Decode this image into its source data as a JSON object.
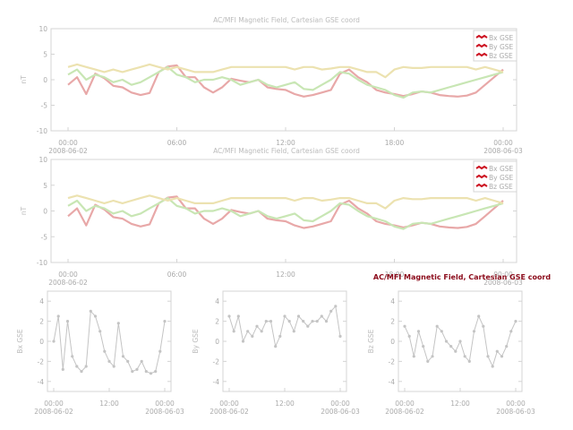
{
  "colors": {
    "Bx": "#e8a8a8",
    "By": "#c8e6b4",
    "Bz": "#ece2b0",
    "frame": "#d4d4d4",
    "grey_series": "#c4c4c4",
    "legend_swatch": "#cc1020",
    "highlight_title": "#8b0a1a"
  },
  "chart_data": [
    {
      "type": "line",
      "title": "AC/MFI  Magnetic Field, Cartesian GSE coord",
      "ylabel": "nT",
      "ylim": [
        -10,
        10
      ],
      "yticks": [
        "10",
        "5",
        "0",
        "-5",
        "-10"
      ],
      "xticks": [
        "00:00",
        "06:00",
        "12:00",
        "18:00",
        "00:00"
      ],
      "xsub": [
        "2008-06-02",
        "",
        "",
        "",
        "2008-06-03"
      ],
      "legend": [
        "Bx GSE",
        "By GSE",
        "Bz GSE"
      ],
      "legend_position": "top-right",
      "x_hours": [
        0,
        0.5,
        1,
        1.5,
        2,
        2.5,
        3,
        3.5,
        4,
        4.5,
        5,
        5.5,
        6,
        6.5,
        7,
        7.5,
        8,
        8.5,
        9,
        9.5,
        10,
        10.5,
        11,
        11.5,
        12,
        12.5,
        13,
        13.5,
        14,
        14.5,
        15,
        15.5,
        16,
        16.5,
        17,
        17.5,
        18,
        18.5,
        19,
        19.5,
        20,
        20.5,
        21,
        21.5,
        22,
        22.5,
        23,
        23.5,
        24
      ],
      "series": [
        {
          "name": "Bx GSE",
          "values": [
            -1,
            0.5,
            -2.8,
            1.2,
            0.3,
            -1.2,
            -1.5,
            -2.5,
            -3,
            -2.6,
            1.5,
            2.6,
            2.8,
            0.5,
            0.5,
            -1.5,
            -2.5,
            -1.5,
            0.2,
            -0.2,
            -0.5,
            0,
            -1.5,
            -1.8,
            -2,
            -2.8,
            -3.3,
            -3,
            -2.5,
            -2,
            1.2,
            2,
            0.5,
            -0.5,
            -2,
            -2.5,
            -2.8,
            -3.2,
            -2.8,
            -2.3,
            -2.5,
            -3,
            -3.2,
            -3.3,
            -3.1,
            -2.5,
            -1,
            0.5,
            2
          ]
        },
        {
          "name": "By GSE",
          "values": [
            1,
            2,
            0,
            1,
            0.5,
            -0.5,
            0,
            -1,
            -0.5,
            0.5,
            1.5,
            2.5,
            1,
            0.5,
            -0.5,
            0,
            0,
            0.5,
            0,
            -1,
            -0.5,
            0,
            -1,
            -1.5,
            -1,
            -0.5,
            -1.8,
            -2,
            -1,
            0,
            1.5,
            1.2,
            0,
            -1,
            -1.5,
            -2,
            -3,
            -3.5,
            -2.5,
            -2.3,
            -2.5,
            -2,
            -1.5,
            -1,
            -0.5,
            0,
            0.5,
            1,
            1.5
          ]
        },
        {
          "name": "Bz GSE",
          "values": [
            2.5,
            3,
            2.5,
            2,
            1.5,
            2,
            1.5,
            2,
            2.5,
            3,
            2.5,
            2,
            2.5,
            2,
            1.5,
            1.5,
            1.5,
            2,
            2.5,
            2.5,
            2.5,
            2.5,
            2.5,
            2.5,
            2.5,
            2,
            2.5,
            2.5,
            2,
            2.2,
            2.5,
            2.5,
            2,
            1.5,
            1.5,
            0.5,
            2,
            2.5,
            2.3,
            2.3,
            2.5,
            2.5,
            2.5,
            2.5,
            2.5,
            2,
            2.5,
            2,
            1.5
          ]
        }
      ]
    },
    {
      "type": "line",
      "title": "AC/MFI  Magnetic Field, Cartesian GSE coord",
      "ylabel": "nT",
      "ylim": [
        -10,
        10
      ],
      "yticks": [
        "10",
        "5",
        "0",
        "-5",
        "-10"
      ],
      "xticks": [
        "00:00",
        "06:00",
        "12:00",
        "18:00",
        "00:00"
      ],
      "xsub": [
        "2008-06-02",
        "",
        "",
        "",
        "2008-06-03"
      ],
      "legend": [
        "Bx GSE",
        "By GSE",
        "Bz GSE"
      ],
      "legend_position": "top-right",
      "x_hours": [
        0,
        0.5,
        1,
        1.5,
        2,
        2.5,
        3,
        3.5,
        4,
        4.5,
        5,
        5.5,
        6,
        6.5,
        7,
        7.5,
        8,
        8.5,
        9,
        9.5,
        10,
        10.5,
        11,
        11.5,
        12,
        12.5,
        13,
        13.5,
        14,
        14.5,
        15,
        15.5,
        16,
        16.5,
        17,
        17.5,
        18,
        18.5,
        19,
        19.5,
        20,
        20.5,
        21,
        21.5,
        22,
        22.5,
        23,
        23.5,
        24
      ],
      "series": [
        {
          "name": "Bx GSE",
          "values": [
            -1,
            0.5,
            -2.8,
            1.2,
            0.3,
            -1.2,
            -1.5,
            -2.5,
            -3,
            -2.6,
            1.5,
            2.6,
            2.8,
            0.5,
            0.5,
            -1.5,
            -2.5,
            -1.5,
            0.2,
            -0.2,
            -0.5,
            0,
            -1.5,
            -1.8,
            -2,
            -2.8,
            -3.3,
            -3,
            -2.5,
            -2,
            1.2,
            2,
            0.5,
            -0.5,
            -2,
            -2.5,
            -2.8,
            -3.2,
            -2.8,
            -2.3,
            -2.5,
            -3,
            -3.2,
            -3.3,
            -3.1,
            -2.5,
            -1,
            0.5,
            2
          ]
        },
        {
          "name": "By GSE",
          "values": [
            1,
            2,
            0,
            1,
            0.5,
            -0.5,
            0,
            -1,
            -0.5,
            0.5,
            1.5,
            2.5,
            1,
            0.5,
            -0.5,
            0,
            0,
            0.5,
            0,
            -1,
            -0.5,
            0,
            -1,
            -1.5,
            -1,
            -0.5,
            -1.8,
            -2,
            -1,
            0,
            1.5,
            1.2,
            0,
            -1,
            -1.5,
            -2,
            -3,
            -3.5,
            -2.5,
            -2.3,
            -2.5,
            -2,
            -1.5,
            -1,
            -0.5,
            0,
            0.5,
            1,
            1.5
          ]
        },
        {
          "name": "Bz GSE",
          "values": [
            2.5,
            3,
            2.5,
            2,
            1.5,
            2,
            1.5,
            2,
            2.5,
            3,
            2.5,
            2,
            2.5,
            2,
            1.5,
            1.5,
            1.5,
            2,
            2.5,
            2.5,
            2.5,
            2.5,
            2.5,
            2.5,
            2.5,
            2,
            2.5,
            2.5,
            2,
            2.2,
            2.5,
            2.5,
            2,
            1.5,
            1.5,
            0.5,
            2,
            2.5,
            2.3,
            2.3,
            2.5,
            2.5,
            2.5,
            2.5,
            2.5,
            2,
            2.5,
            2,
            1.5
          ]
        }
      ]
    },
    {
      "type": "scatter",
      "title": "",
      "ylabel": "Bx GSE",
      "ylim": [
        -5,
        5
      ],
      "yticks": [
        "4",
        "2",
        "0",
        "-2",
        "-4"
      ],
      "xticks": [
        "00:00",
        "12:00",
        "00:00"
      ],
      "xsub": [
        "2008-06-02",
        "",
        "2008-06-03"
      ],
      "x_hours": [
        0,
        1,
        2,
        3,
        4,
        5,
        6,
        7,
        8,
        9,
        10,
        11,
        12,
        13,
        14,
        15,
        16,
        17,
        18,
        19,
        20,
        21,
        22,
        23,
        24
      ],
      "values": [
        0,
        2.5,
        -2.8,
        2,
        -1.5,
        -2.5,
        -3,
        -2.5,
        3,
        2.5,
        1,
        -1,
        -2,
        -2.5,
        1.8,
        -1.5,
        -2,
        -3,
        -2.8,
        -2,
        -3,
        -3.2,
        -3,
        -1,
        2
      ]
    },
    {
      "type": "scatter",
      "title": "",
      "ylabel": "By GSE",
      "ylim": [
        -5,
        5
      ],
      "yticks": [
        "4",
        "2",
        "0",
        "-2",
        "-4"
      ],
      "xticks": [
        "00:00",
        "12:00",
        "00:00"
      ],
      "xsub": [
        "2008-06-02",
        "",
        "2008-06-03"
      ],
      "x_hours": [
        0,
        1,
        2,
        3,
        4,
        5,
        6,
        7,
        8,
        9,
        10,
        11,
        12,
        13,
        14,
        15,
        16,
        17,
        18,
        19,
        20,
        21,
        22,
        23,
        24
      ],
      "values": [
        2.5,
        1,
        2.5,
        0,
        1,
        0.5,
        1.5,
        1,
        2,
        2,
        -0.5,
        0.5,
        2.5,
        2,
        1,
        2.5,
        2,
        1.5,
        2,
        2,
        2.5,
        2,
        3,
        3.5,
        0.5
      ]
    },
    {
      "type": "scatter",
      "title": "AC/MFI  Magnetic Field, Cartesian GSE coord",
      "ylabel": "Bz GSE",
      "ylim": [
        -5,
        5
      ],
      "yticks": [
        "4",
        "2",
        "0",
        "-2",
        "-4"
      ],
      "xticks": [
        "00:00",
        "12:00",
        "00:00"
      ],
      "xsub": [
        "2008-06-02",
        "",
        "2008-06-03"
      ],
      "x_hours": [
        0,
        1,
        2,
        3,
        4,
        5,
        6,
        7,
        8,
        9,
        10,
        11,
        12,
        13,
        14,
        15,
        16,
        17,
        18,
        19,
        20,
        21,
        22,
        23,
        24
      ],
      "values": [
        1.5,
        0.5,
        -1.5,
        1,
        -0.5,
        -2,
        -1.5,
        1.5,
        1,
        0,
        -0.5,
        -1,
        0,
        -1.5,
        -2,
        1,
        2.5,
        1.5,
        -1.5,
        -2.5,
        -1,
        -1.5,
        -0.5,
        1,
        2
      ]
    }
  ]
}
